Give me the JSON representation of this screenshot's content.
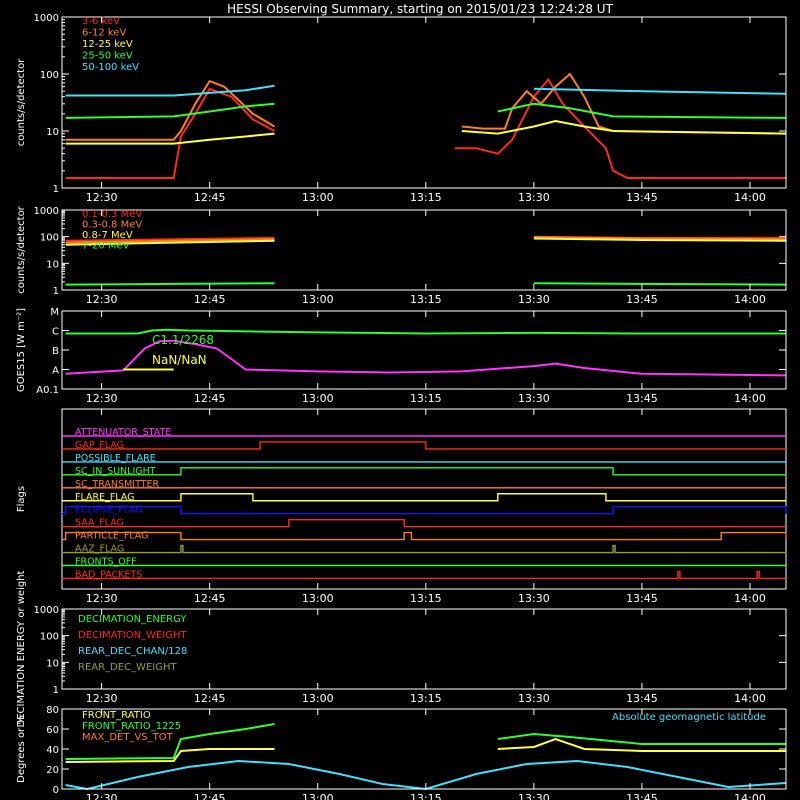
{
  "colors": {
    "red": "#ff2a1a",
    "orange": "#ff7f1e",
    "yellow": "#ffff3c",
    "green": "#2cff2c",
    "cyan": "#40e0ff",
    "magenta": "#ff33ff",
    "blue": "#1414ff",
    "olive": "#9b9b28",
    "axis": "#ffffff"
  },
  "chart_data": [
    {
      "type": "line",
      "title": "HESSI Observing Summary, starting on 2015/01/23 12:24:28 UT",
      "ylabel": "counts/s/detector",
      "yscale": "log",
      "ylim": [
        1,
        1000
      ],
      "ytick_labels": [
        "1",
        "10",
        "100",
        "1000"
      ],
      "xtick_labels": [
        "12:30",
        "12:45",
        "13:00",
        "13:15",
        "13:30",
        "13:45",
        "14:00"
      ],
      "series": [
        {
          "name": "3-6 keV",
          "color": "red",
          "x": [
            "12:25",
            "12:40",
            "12:41",
            "12:43",
            "12:45",
            "12:48",
            "12:51",
            "12:54",
            "13:15",
            "13:19",
            "13:22",
            "13:25",
            "13:27",
            "13:30",
            "13:32",
            "13:34",
            "13:37",
            "13:40",
            "13:41",
            "13:43",
            "14:05"
          ],
          "values": [
            1.5,
            1.5,
            8,
            20,
            55,
            40,
            16,
            10,
            null,
            5,
            5,
            4,
            7,
            40,
            80,
            30,
            12,
            5,
            2,
            1.5,
            1.5
          ]
        },
        {
          "name": "6-12 keV",
          "color": "orange",
          "x": [
            "12:25",
            "12:40",
            "12:41",
            "12:43",
            "12:45",
            "12:47",
            "12:49",
            "12:51",
            "12:54",
            "13:15",
            "13:20",
            "13:23",
            "13:26",
            "13:27",
            "13:29",
            "13:31",
            "13:33",
            "13:35",
            "13:37",
            "13:39",
            "13:41",
            "14:05"
          ],
          "values": [
            7,
            7,
            10,
            30,
            75,
            60,
            35,
            20,
            12,
            null,
            12,
            11,
            11,
            25,
            50,
            30,
            60,
            100,
            40,
            12,
            10,
            9
          ]
        },
        {
          "name": "12-25 keV",
          "color": "yellow",
          "x": [
            "12:25",
            "12:40",
            "12:45",
            "12:50",
            "12:54",
            "13:15",
            "13:20",
            "13:25",
            "13:30",
            "13:33",
            "13:37",
            "13:41",
            "14:05"
          ],
          "values": [
            6,
            6,
            7,
            8,
            9,
            null,
            10,
            9,
            12,
            15,
            12,
            10,
            9
          ]
        },
        {
          "name": "25-50 keV",
          "color": "green",
          "x": [
            "12:25",
            "12:40",
            "12:45",
            "12:50",
            "12:54",
            "13:15",
            "13:25",
            "13:30",
            "13:35",
            "13:41",
            "14:05"
          ],
          "values": [
            17,
            18,
            22,
            27,
            30,
            null,
            22,
            30,
            25,
            18,
            17
          ]
        },
        {
          "name": "50-100 keV",
          "color": "cyan",
          "x": [
            "12:25",
            "12:40",
            "12:50",
            "12:54",
            "13:15",
            "13:30",
            "13:45",
            "14:05"
          ],
          "values": [
            42,
            42,
            52,
            62,
            null,
            55,
            50,
            45
          ]
        }
      ]
    },
    {
      "type": "line",
      "ylabel": "counts/s/detector",
      "yscale": "log",
      "ylim": [
        1,
        1000
      ],
      "ytick_labels": [
        "1",
        "10",
        "100",
        "1000"
      ],
      "xtick_labels": [
        "12:30",
        "12:45",
        "13:00",
        "13:15",
        "13:30",
        "13:45",
        "14:00"
      ],
      "series": [
        {
          "name": "0.1-0.3 MeV",
          "color": "red",
          "x": [
            "12:25",
            "12:40",
            "12:54",
            "13:15",
            "13:30",
            "13:45",
            "14:05"
          ],
          "values": [
            70,
            80,
            90,
            null,
            100,
            90,
            90
          ]
        },
        {
          "name": "0.3-0.8 MeV",
          "color": "orange",
          "x": [
            "12:25",
            "12:40",
            "12:54",
            "13:15",
            "13:30",
            "13:45",
            "14:05"
          ],
          "values": [
            60,
            70,
            80,
            null,
            95,
            85,
            80
          ]
        },
        {
          "name": "0.8-7 MeV",
          "color": "yellow",
          "x": [
            "12:25",
            "12:40",
            "12:54",
            "13:15",
            "13:30",
            "13:45",
            "14:05"
          ],
          "values": [
            50,
            60,
            70,
            null,
            85,
            75,
            70
          ]
        },
        {
          "name": "7-20 MeV",
          "color": "green",
          "x": [
            "12:25",
            "12:40",
            "12:54",
            "13:15",
            "13:30",
            "13:45",
            "14:05"
          ],
          "values": [
            1.6,
            1.7,
            1.8,
            null,
            1.8,
            1.7,
            1.6
          ]
        }
      ]
    },
    {
      "type": "line",
      "ylabel": "GOES15 [W m⁻²]",
      "yscale": "log",
      "ytick_labels": [
        "A0.1",
        "A",
        "B",
        "C",
        "M"
      ],
      "xtick_labels": [
        "12:30",
        "12:45",
        "13:00",
        "13:15",
        "13:30",
        "13:45",
        "14:00"
      ],
      "annotations": [
        "C1.1/2268",
        "NaN/NaN"
      ],
      "series": [
        {
          "color": "green",
          "x": [
            "12:25",
            "12:35",
            "12:37",
            "12:39",
            "12:42",
            "12:46",
            "12:50",
            "13:00",
            "13:15",
            "13:30",
            "13:45",
            "14:05"
          ],
          "values": [
            "C0.7",
            "C0.7",
            "C1.0",
            "C1.1",
            "C1.0",
            "C0.95",
            "C0.9",
            "C0.8",
            "C0.7",
            "C0.75",
            "C0.7",
            "C0.7"
          ]
        },
        {
          "color": "magenta",
          "x": [
            "12:25",
            "12:33",
            "12:36",
            "12:38",
            "12:40",
            "12:43",
            "12:46",
            "12:50",
            "13:00",
            "13:10",
            "13:20",
            "13:30",
            "13:33",
            "13:37",
            "13:45",
            "14:05"
          ],
          "values": [
            "A0.6",
            "A0.9",
            "B1.2",
            "B2.8",
            "B3.0",
            "B2.0",
            "B1.2",
            "A1.0",
            "A0.8",
            "A0.7",
            "A0.8",
            "A1.5",
            "A2.0",
            "A1.2",
            "A0.6",
            "A0.5"
          ]
        },
        {
          "color": "yellow",
          "x": [
            "12:33",
            "12:40"
          ],
          "values": [
            "A1.0",
            "A1.0"
          ]
        }
      ]
    },
    {
      "type": "line",
      "ylabel": "Flags",
      "xtick_labels": [
        "12:30",
        "12:45",
        "13:00",
        "13:15",
        "13:30",
        "13:45",
        "14:00"
      ],
      "flags": [
        {
          "name": "ATTENUATOR_STATE",
          "color": "magenta",
          "on_intervals": []
        },
        {
          "name": "GAP_FLAG",
          "color": "red",
          "on_intervals": [
            [
              "12:52",
              "13:15"
            ]
          ]
        },
        {
          "name": "POSSIBLE_FLARE",
          "color": "cyan",
          "on_intervals": []
        },
        {
          "name": "SC_IN_SUNLIGHT",
          "color": "green",
          "on_intervals": [
            [
              "12:41",
              "13:41"
            ]
          ]
        },
        {
          "name": "SC_TRANSMITTER",
          "color": "orange",
          "on_intervals": []
        },
        {
          "name": "FLARE_FLAG",
          "color": "yellow",
          "on_intervals": [
            [
              "12:41",
              "12:51"
            ],
            [
              "13:25",
              "13:40"
            ]
          ]
        },
        {
          "name": "ECLIPSE_FLAG",
          "color": "blue",
          "on_intervals": [
            [
              "12:25",
              "12:41"
            ],
            [
              "13:41",
              "14:05"
            ]
          ]
        },
        {
          "name": "SAA_FLAG",
          "color": "red",
          "on_intervals": [
            [
              "12:56",
              "13:12"
            ]
          ]
        },
        {
          "name": "PARTICLE_FLAG",
          "color": "orange",
          "on_intervals": [
            [
              "12:25",
              "12:41"
            ],
            [
              "13:12",
              "13:13"
            ],
            [
              "13:56",
              "14:05"
            ]
          ]
        },
        {
          "name": "AAZ_FLAG",
          "color": "olive",
          "on_intervals": [
            [
              "12:41",
              "12:41"
            ],
            [
              "13:41",
              "13:41"
            ]
          ]
        },
        {
          "name": "FRONTS_OFF",
          "color": "green",
          "on_intervals": []
        },
        {
          "name": "BAD_PACKETS",
          "color": "red",
          "on_intervals": [
            [
              "13:50",
              "13:50"
            ],
            [
              "14:01",
              "14:01"
            ]
          ]
        }
      ]
    },
    {
      "type": "line",
      "ylabel": "DECIMATION ENERGY or weight",
      "yscale": "log",
      "ylim": [
        1,
        1000
      ],
      "ytick_labels": [
        "1",
        "10",
        "100",
        "1000"
      ],
      "xtick_labels": [
        "12:30",
        "12:45",
        "13:00",
        "13:15",
        "13:30",
        "13:45",
        "14:00"
      ],
      "series": [
        {
          "name": "DECIMATION_ENERGY",
          "color": "green",
          "values": []
        },
        {
          "name": "DECIMATION_WEIGHT",
          "color": "red",
          "values": []
        },
        {
          "name": "REAR_DEC_CHAN/128",
          "color": "cyan",
          "values": []
        },
        {
          "name": "REAR_DEC_WEIGHT",
          "color": "olive",
          "values": []
        }
      ]
    },
    {
      "type": "line",
      "ylabel": "Degrees or %",
      "ylim": [
        0,
        80
      ],
      "ytick_labels": [
        "0",
        "20",
        "40",
        "60",
        "80"
      ],
      "xtick_labels": [
        "12:30",
        "12:45",
        "13:00",
        "13:15",
        "13:30",
        "13:45",
        "14:00"
      ],
      "annotations": [
        "Absolute geomagnetic latitude"
      ],
      "series": [
        {
          "name": "FRONT_RATIO",
          "color": "yellow",
          "x": [
            "12:25",
            "12:40",
            "12:41",
            "12:45",
            "12:54",
            "13:15",
            "13:25",
            "13:30",
            "13:33",
            "13:37",
            "13:45",
            "14:05"
          ],
          "values": [
            27,
            28,
            38,
            40,
            40,
            null,
            40,
            42,
            50,
            40,
            38,
            38
          ]
        },
        {
          "name": "FRONT_RATIO_1225",
          "color": "green",
          "x": [
            "12:25",
            "12:40",
            "12:41",
            "12:45",
            "12:50",
            "12:54",
            "13:15",
            "13:25",
            "13:30",
            "13:35",
            "13:45",
            "14:05"
          ],
          "values": [
            30,
            31,
            50,
            55,
            60,
            65,
            null,
            50,
            55,
            52,
            45,
            45
          ]
        },
        {
          "name": "MAX_DET_VS_TOT",
          "color": "orange",
          "values": []
        },
        {
          "color": "cyan",
          "x": [
            "12:25",
            "12:28",
            "12:35",
            "12:42",
            "12:49",
            "12:56",
            "13:03",
            "13:09",
            "13:15",
            "13:22",
            "13:29",
            "13:36",
            "13:43",
            "13:50",
            "13:57",
            "14:05"
          ],
          "values": [
            4,
            0,
            12,
            22,
            28,
            25,
            15,
            5,
            0,
            15,
            25,
            28,
            22,
            12,
            2,
            6
          ]
        }
      ]
    }
  ]
}
